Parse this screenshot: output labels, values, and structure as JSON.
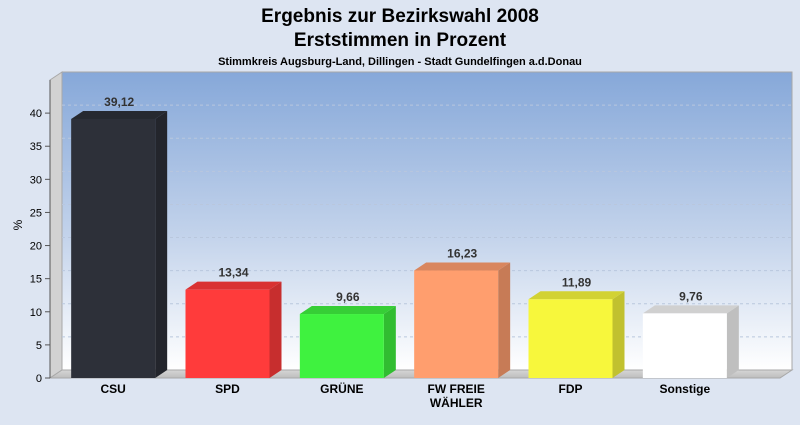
{
  "chart_data": {
    "type": "bar",
    "title": "Ergebnis zur Bezirkswahl 2008",
    "subtitle": "Erststimmen in Prozent",
    "subsubtitle": "Stimmkreis Augsburg-Land, Dillingen - Stadt Gundelfingen a.d.Donau",
    "xlabel": "",
    "ylabel": "%",
    "ylim": [
      0,
      45
    ],
    "yticks": [
      "0",
      "5",
      "10",
      "15",
      "20",
      "25",
      "30",
      "35",
      "40"
    ],
    "grid": true,
    "legend": "none",
    "categories": [
      [
        "CSU"
      ],
      [
        "SPD"
      ],
      [
        "GRÜNE"
      ],
      [
        "FW FREIE",
        "WÄHLER"
      ],
      [
        "FDP"
      ],
      [
        "Sonstige"
      ]
    ],
    "values": [
      39.12,
      13.34,
      9.66,
      16.23,
      11.89,
      9.76
    ],
    "value_labels": [
      "39,12",
      "13,34",
      "9,66",
      "16,23",
      "11,89",
      "9,76"
    ],
    "colors": [
      "#2d3039",
      "#ff3b3b",
      "#3ff23f",
      "#ff9e6e",
      "#f7f73c",
      "#ffffff"
    ]
  }
}
